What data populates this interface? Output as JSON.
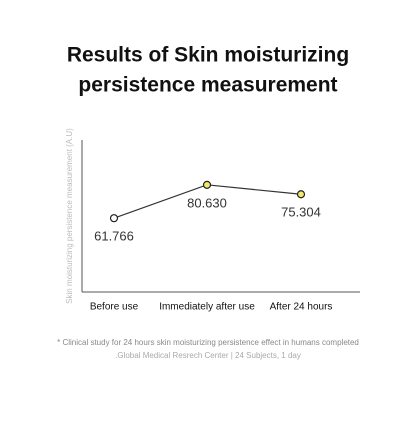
{
  "chart_data": {
    "type": "line",
    "title": [
      "Results of Skin moisturizing",
      "persistence measurement"
    ],
    "y_label": "Skin moisturizing persistence measurement (A.U)",
    "categories": [
      "Before use",
      "Immediately after use",
      "After 24 hours"
    ],
    "values": [
      61.766,
      80.63,
      75.304
    ],
    "value_labels": [
      "61.766",
      "80.630",
      "75.304"
    ],
    "line_color": "#333333",
    "point_colors": [
      "#ffffff",
      "#f2e86a",
      "#f2e86a"
    ],
    "ylim": [
      20,
      106
    ],
    "footnotes": [
      "* Clinical study for 24 hours skin moisturizing persistence effect in humans completed",
      ".Global Medical Resrech Center | 24 Subjects, 1 day"
    ]
  }
}
